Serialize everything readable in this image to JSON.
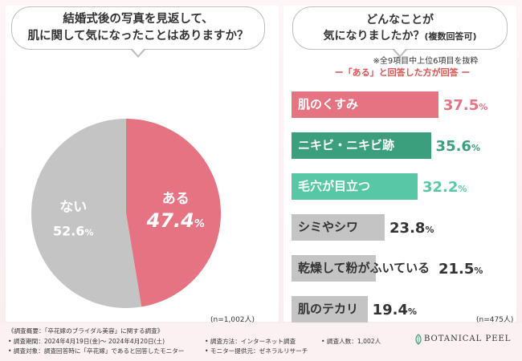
{
  "left": {
    "question_line1": "結婚式後の写真を見返して、",
    "question_line2": "肌に関して気になったことはありますか？",
    "sample": "(n=1,002人)"
  },
  "right": {
    "question_line1": "どんなことが",
    "question_line2": "気になりましたか？",
    "question_sub": "(複数回答可)",
    "note": "※全9項目中上位6項目を抜粋",
    "legend": "ー「ある」と回答した方が回答 ー",
    "sample": "(n=475人)"
  },
  "colors": {
    "pink": "#e57381",
    "gray": "#c4c4c4",
    "green_dark": "#3b9e7c",
    "green_light": "#58c7a5"
  },
  "chart_data": [
    {
      "type": "pie",
      "slices": [
        {
          "label": "ある",
          "value": 47.4,
          "display": "47.4",
          "unit": "%",
          "color": "#e57381"
        },
        {
          "label": "ない",
          "value": 52.6,
          "display": "52.6",
          "unit": "%",
          "color": "#c4c4c4"
        }
      ]
    },
    {
      "type": "bar",
      "orientation": "horizontal",
      "categories": [
        "肌のくすみ",
        "ニキビ・ニキビ跡",
        "毛穴が目立つ",
        "シミやシワ",
        "乾燥して粉がふいている",
        "肌のテカリ"
      ],
      "values": [
        37.5,
        35.6,
        32.2,
        23.8,
        21.5,
        19.4
      ],
      "unit": "%",
      "colors": [
        "#e57381",
        "#3b9e7c",
        "#58c7a5",
        "#c4c4c4",
        "#c4c4c4",
        "#c4c4c4"
      ],
      "value_colors": [
        "#e57381",
        "#3b9e7c",
        "#58c7a5",
        "#333333",
        "#333333",
        "#333333"
      ],
      "label_colors": [
        "#ffffff",
        "#ffffff",
        "#ffffff",
        "#333333",
        "#333333",
        "#333333"
      ],
      "xlim": [
        0,
        40
      ]
    }
  ],
  "footer": {
    "line1": "《調査概要：「卒花嫁のブライダル美容」に関する調査》",
    "period": "• 調査期間：2024年4月19日(金)～ 2024年4月20日(土)",
    "method": "• 調査方法：インターネット調査",
    "count": "• 調査人数：1,002人",
    "target": "• 調査対象：調査回答時に「卒花嫁」であると回答したモニター",
    "provider": "• モニター提供元：ゼネラルリサーチ",
    "brand": "BOTANICAL PEEL"
  }
}
